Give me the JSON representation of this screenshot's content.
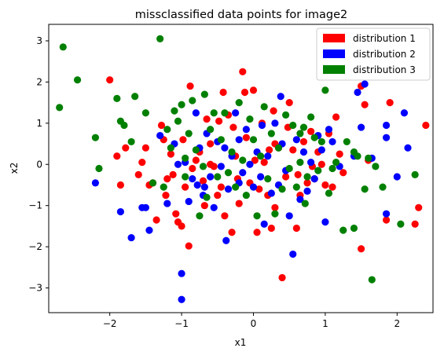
{
  "chart_data": {
    "type": "scatter",
    "title": "missclassified data points for image2",
    "xlabel": "x1",
    "ylabel": "x2",
    "xlim": [
      -2.85,
      2.5
    ],
    "ylim": [
      -3.6,
      3.4
    ],
    "xticks": [
      -2,
      -1,
      0,
      1,
      2
    ],
    "yticks": [
      -3,
      -2,
      -1,
      0,
      1,
      2,
      3
    ],
    "grid": false,
    "legend_position": "top-right",
    "series": [
      {
        "name": "distribution 1",
        "color": "#ff0000",
        "points": [
          [
            -2.0,
            2.05
          ],
          [
            -1.9,
            0.2
          ],
          [
            -1.85,
            -0.5
          ],
          [
            -1.78,
            0.4
          ],
          [
            -1.6,
            -0.25
          ],
          [
            -1.55,
            0.05
          ],
          [
            -1.5,
            0.4
          ],
          [
            -1.45,
            -0.5
          ],
          [
            -1.4,
            -0.45
          ],
          [
            -1.35,
            -1.35
          ],
          [
            -1.28,
            0.95
          ],
          [
            -1.25,
            0.6
          ],
          [
            -1.22,
            -0.75
          ],
          [
            -1.2,
            -0.35
          ],
          [
            -1.15,
            0.25
          ],
          [
            -1.12,
            -0.25
          ],
          [
            -1.08,
            -1.2
          ],
          [
            -1.05,
            -1.4
          ],
          [
            -1.0,
            -1.5
          ],
          [
            -0.98,
            0.6
          ],
          [
            -0.95,
            -0.55
          ],
          [
            -0.9,
            -1.98
          ],
          [
            -0.88,
            1.9
          ],
          [
            -0.85,
            -0.1
          ],
          [
            -0.8,
            0.1
          ],
          [
            -0.75,
            0.3
          ],
          [
            -0.7,
            -0.4
          ],
          [
            -0.68,
            -1.0
          ],
          [
            -0.65,
            1.1
          ],
          [
            -0.6,
            0.5
          ],
          [
            -0.55,
            -0.05
          ],
          [
            -0.5,
            -0.75
          ],
          [
            -0.48,
            1.05
          ],
          [
            -0.45,
            -0.55
          ],
          [
            -0.42,
            1.75
          ],
          [
            -0.4,
            -1.25
          ],
          [
            -0.35,
            1.2
          ],
          [
            -0.3,
            -1.65
          ],
          [
            -0.28,
            0.9
          ],
          [
            -0.25,
            0.2
          ],
          [
            -0.22,
            -0.35
          ],
          [
            -0.2,
            -0.95
          ],
          [
            -0.15,
            2.25
          ],
          [
            -0.12,
            1.75
          ],
          [
            -0.1,
            0.65
          ],
          [
            -0.05,
            -0.45
          ],
          [
            0.0,
            1.8
          ],
          [
            0.02,
            0.1
          ],
          [
            0.05,
            -1.65
          ],
          [
            0.08,
            -0.6
          ],
          [
            0.12,
            1.0
          ],
          [
            0.15,
            0.05
          ],
          [
            0.2,
            -0.75
          ],
          [
            0.22,
            0.35
          ],
          [
            0.25,
            -1.55
          ],
          [
            0.28,
            1.3
          ],
          [
            0.3,
            -1.05
          ],
          [
            0.35,
            0.4
          ],
          [
            0.4,
            -2.75
          ],
          [
            0.45,
            -0.3
          ],
          [
            0.48,
            0.9
          ],
          [
            0.5,
            1.5
          ],
          [
            0.55,
            0.35
          ],
          [
            0.6,
            -1.55
          ],
          [
            0.62,
            -0.25
          ],
          [
            0.65,
            -0.75
          ],
          [
            0.7,
            0.55
          ],
          [
            0.75,
            -0.45
          ],
          [
            0.8,
            0.8
          ],
          [
            0.82,
            -0.05
          ],
          [
            0.85,
            -0.35
          ],
          [
            0.9,
            0.3
          ],
          [
            0.95,
            0.0
          ],
          [
            1.0,
            -0.5
          ],
          [
            1.05,
            0.75
          ],
          [
            1.1,
            -0.55
          ],
          [
            1.2,
            0.25
          ],
          [
            1.25,
            -0.2
          ],
          [
            1.5,
            1.9
          ],
          [
            1.55,
            1.45
          ],
          [
            1.5,
            -2.05
          ],
          [
            1.6,
            0.1
          ],
          [
            1.85,
            -1.35
          ],
          [
            1.9,
            1.5
          ],
          [
            2.25,
            -1.45
          ],
          [
            2.3,
            -1.05
          ],
          [
            2.4,
            0.95
          ],
          [
            0.3,
            0.5
          ],
          [
            -0.6,
            0.0
          ],
          [
            1.15,
            1.15
          ]
        ]
      },
      {
        "name": "distribution 2",
        "color": "#0000ff",
        "points": [
          [
            -2.2,
            -0.45
          ],
          [
            -1.85,
            -1.15
          ],
          [
            -1.7,
            -1.78
          ],
          [
            -1.55,
            -1.05
          ],
          [
            -1.5,
            -1.05
          ],
          [
            -1.45,
            -1.6
          ],
          [
            -1.3,
            0.7
          ],
          [
            -1.2,
            -0.95
          ],
          [
            -1.1,
            0.5
          ],
          [
            -1.05,
            0.0
          ],
          [
            -1.0,
            -2.65
          ],
          [
            -1.0,
            -3.28
          ],
          [
            -0.95,
            0.05
          ],
          [
            -0.9,
            -0.9
          ],
          [
            -0.85,
            -0.35
          ],
          [
            -0.8,
            1.25
          ],
          [
            -0.78,
            -0.5
          ],
          [
            -0.75,
            0.4
          ],
          [
            -0.7,
            -0.75
          ],
          [
            -0.68,
            -0.55
          ],
          [
            -0.65,
            0.75
          ],
          [
            -0.6,
            -0.3
          ],
          [
            -0.55,
            -1.05
          ],
          [
            -0.5,
            0.55
          ],
          [
            -0.45,
            -0.05
          ],
          [
            -0.4,
            0.4
          ],
          [
            -0.38,
            -1.85
          ],
          [
            -0.35,
            -0.6
          ],
          [
            -0.3,
            0.2
          ],
          [
            -0.25,
            1.25
          ],
          [
            -0.2,
            -0.45
          ],
          [
            -0.15,
            -0.2
          ],
          [
            -0.1,
            0.85
          ],
          [
            -0.05,
            0.0
          ],
          [
            0.0,
            -0.55
          ],
          [
            0.05,
            0.3
          ],
          [
            0.1,
            -0.3
          ],
          [
            0.12,
            0.95
          ],
          [
            0.15,
            -1.45
          ],
          [
            0.2,
            0.2
          ],
          [
            0.25,
            -0.7
          ],
          [
            0.3,
            1.0
          ],
          [
            0.35,
            -0.5
          ],
          [
            0.38,
            1.65
          ],
          [
            0.4,
            0.5
          ],
          [
            0.45,
            -0.15
          ],
          [
            0.5,
            -1.25
          ],
          [
            0.55,
            -2.18
          ],
          [
            0.6,
            0.6
          ],
          [
            0.65,
            -0.85
          ],
          [
            0.7,
            0.3
          ],
          [
            0.75,
            -0.65
          ],
          [
            0.8,
            0.05
          ],
          [
            0.85,
            -0.35
          ],
          [
            0.9,
            0.7
          ],
          [
            0.95,
            0.35
          ],
          [
            1.0,
            -1.4
          ],
          [
            1.05,
            0.85
          ],
          [
            1.1,
            0.55
          ],
          [
            1.2,
            -0.05
          ],
          [
            1.4,
            0.2
          ],
          [
            1.45,
            1.75
          ],
          [
            1.5,
            0.9
          ],
          [
            1.55,
            1.95
          ],
          [
            1.65,
            0.15
          ],
          [
            1.85,
            0.95
          ],
          [
            1.85,
            -1.2
          ],
          [
            2.0,
            -0.3
          ],
          [
            2.1,
            1.25
          ],
          [
            2.15,
            0.4
          ],
          [
            1.85,
            0.65
          ],
          [
            -0.2,
            0.6
          ]
        ]
      },
      {
        "name": "distribution 3",
        "color": "#008000",
        "points": [
          [
            -2.7,
            1.38
          ],
          [
            -2.65,
            2.85
          ],
          [
            -2.45,
            2.05
          ],
          [
            -2.2,
            0.65
          ],
          [
            -2.15,
            -0.1
          ],
          [
            -1.9,
            1.6
          ],
          [
            -1.85,
            1.05
          ],
          [
            -1.8,
            0.95
          ],
          [
            -1.7,
            0.55
          ],
          [
            -1.65,
            1.65
          ],
          [
            -1.5,
            1.25
          ],
          [
            -1.4,
            -0.45
          ],
          [
            -1.3,
            3.05
          ],
          [
            -1.25,
            -0.55
          ],
          [
            -1.2,
            0.85
          ],
          [
            -1.15,
            0.4
          ],
          [
            -1.1,
            1.3
          ],
          [
            -1.05,
            1.05
          ],
          [
            -1.0,
            1.45
          ],
          [
            -0.95,
            -0.3
          ],
          [
            -0.9,
            0.75
          ],
          [
            -0.85,
            1.55
          ],
          [
            -0.8,
            0.35
          ],
          [
            -0.75,
            -1.25
          ],
          [
            -0.7,
            -0.05
          ],
          [
            -0.68,
            1.7
          ],
          [
            -0.65,
            -0.8
          ],
          [
            -0.6,
            0.85
          ],
          [
            -0.55,
            1.25
          ],
          [
            -0.5,
            -0.3
          ],
          [
            -0.45,
            0.6
          ],
          [
            -0.4,
            1.25
          ],
          [
            -0.35,
            -0.2
          ],
          [
            -0.3,
            0.3
          ],
          [
            -0.25,
            -0.55
          ],
          [
            -0.2,
            1.5
          ],
          [
            -0.15,
            0.1
          ],
          [
            -0.1,
            -0.75
          ],
          [
            -0.05,
            1.1
          ],
          [
            0.0,
            0.6
          ],
          [
            0.05,
            -1.25
          ],
          [
            0.1,
            0.2
          ],
          [
            0.15,
            1.4
          ],
          [
            0.2,
            -0.35
          ],
          [
            0.25,
            0.75
          ],
          [
            0.3,
            -1.2
          ],
          [
            0.35,
            0.4
          ],
          [
            0.4,
            -0.6
          ],
          [
            0.45,
            1.2
          ],
          [
            0.5,
            -0.1
          ],
          [
            0.55,
            0.95
          ],
          [
            0.6,
            -0.55
          ],
          [
            0.65,
            0.05
          ],
          [
            0.7,
            0.9
          ],
          [
            0.72,
            -0.95
          ],
          [
            0.75,
            -0.3
          ],
          [
            0.8,
            1.15
          ],
          [
            0.85,
            0.65
          ],
          [
            0.9,
            -0.15
          ],
          [
            0.95,
            0.55
          ],
          [
            1.0,
            1.8
          ],
          [
            1.05,
            -0.7
          ],
          [
            1.1,
            -0.1
          ],
          [
            1.15,
            0.05
          ],
          [
            1.25,
            -1.6
          ],
          [
            1.3,
            0.55
          ],
          [
            1.4,
            -1.55
          ],
          [
            1.4,
            0.3
          ],
          [
            1.45,
            0.2
          ],
          [
            1.55,
            -0.6
          ],
          [
            1.6,
            0.15
          ],
          [
            1.65,
            -2.8
          ],
          [
            1.7,
            -0.05
          ],
          [
            1.8,
            -0.55
          ],
          [
            2.05,
            -1.45
          ],
          [
            2.25,
            -0.25
          ],
          [
            -0.95,
            0.15
          ],
          [
            0.65,
            0.75
          ]
        ]
      }
    ]
  }
}
